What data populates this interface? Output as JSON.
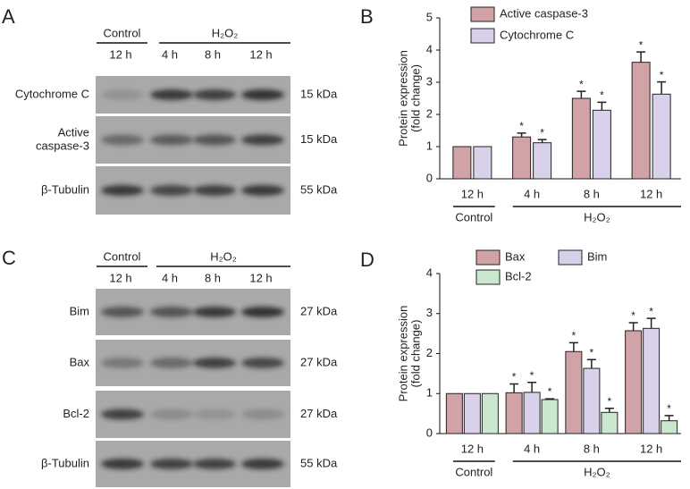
{
  "panels": [
    "A",
    "B",
    "C",
    "D"
  ],
  "blots": [
    {
      "groups": [
        {
          "label": "Control",
          "lanes": [
            "12 h"
          ]
        },
        {
          "label": "H₂O₂",
          "lanes": [
            "4 h",
            "8 h",
            "12 h"
          ]
        }
      ],
      "rows": [
        {
          "label": [
            "Cytochrome C"
          ],
          "size": "15 kDa"
        },
        {
          "label": [
            "Active",
            "caspase-3"
          ],
          "size": "15 kDa"
        },
        {
          "label": [
            "β-Tubulin"
          ],
          "size": "55 kDa"
        }
      ]
    },
    {
      "groups": [
        {
          "label": "Control",
          "lanes": [
            "12 h"
          ]
        },
        {
          "label": "H₂O₂",
          "lanes": [
            "4 h",
            "8 h",
            "12 h"
          ]
        }
      ],
      "rows": [
        {
          "label": [
            "Bim"
          ],
          "size": "27 kDa"
        },
        {
          "label": [
            "Bax"
          ],
          "size": "27 kDa"
        },
        {
          "label": [
            "Bcl-2"
          ],
          "size": "27 kDa"
        },
        {
          "label": [
            "β-Tubulin"
          ],
          "size": "55 kDa"
        }
      ]
    }
  ],
  "chart_data": [
    {
      "type": "bar",
      "ylabel": [
        "Protein expression",
        "(fold change)"
      ],
      "groups": [
        {
          "label": "Control",
          "categories": [
            "12 h"
          ]
        },
        {
          "label": "H₂O₂",
          "categories": [
            "4 h",
            "8 h",
            "12 h"
          ]
        }
      ],
      "ylim": [
        0,
        5
      ],
      "yticks": [
        0,
        1,
        2,
        3,
        4,
        5
      ],
      "series": [
        {
          "name": "Active caspase-3",
          "color": "#d2a3a6",
          "values": [
            1,
            1.3,
            2.5,
            3.62
          ],
          "errors": [
            0,
            0.12,
            0.22,
            0.32
          ],
          "markers": [
            null,
            "*",
            "*",
            "*"
          ]
        },
        {
          "name": "Cytochrome C",
          "color": "#d9d0ea",
          "values": [
            1,
            1.12,
            2.13,
            2.63
          ],
          "errors": [
            0,
            0.1,
            0.25,
            0.38
          ],
          "markers": [
            null,
            "*",
            "*",
            "*"
          ]
        }
      ]
    },
    {
      "type": "bar",
      "ylabel": [
        "Protein expression",
        "(fold change)"
      ],
      "groups": [
        {
          "label": "Control",
          "categories": [
            "12 h"
          ]
        },
        {
          "label": "H₂O₂",
          "categories": [
            "4 h",
            "8 h",
            "12 h"
          ]
        }
      ],
      "ylim": [
        0,
        4
      ],
      "yticks": [
        0,
        1,
        2,
        3,
        4
      ],
      "series": [
        {
          "name": "Bax",
          "color": "#d2a3a6",
          "values": [
            1,
            1.02,
            2.05,
            2.57
          ],
          "errors": [
            0,
            0.22,
            0.22,
            0.2
          ],
          "markers": [
            null,
            "*",
            "*",
            "*"
          ]
        },
        {
          "name": "Bim",
          "color": "#d9d0ea",
          "values": [
            1,
            1.03,
            1.63,
            2.63
          ],
          "errors": [
            0,
            0.25,
            0.22,
            0.25
          ],
          "markers": [
            null,
            "*",
            "*",
            "*"
          ]
        },
        {
          "name": "Bcl-2",
          "color": "#cbe8cf",
          "values": [
            1,
            0.85,
            0.53,
            0.32
          ],
          "errors": [
            0,
            0.02,
            0.1,
            0.13
          ],
          "markers": [
            null,
            "*",
            "*",
            "*"
          ]
        }
      ]
    }
  ]
}
